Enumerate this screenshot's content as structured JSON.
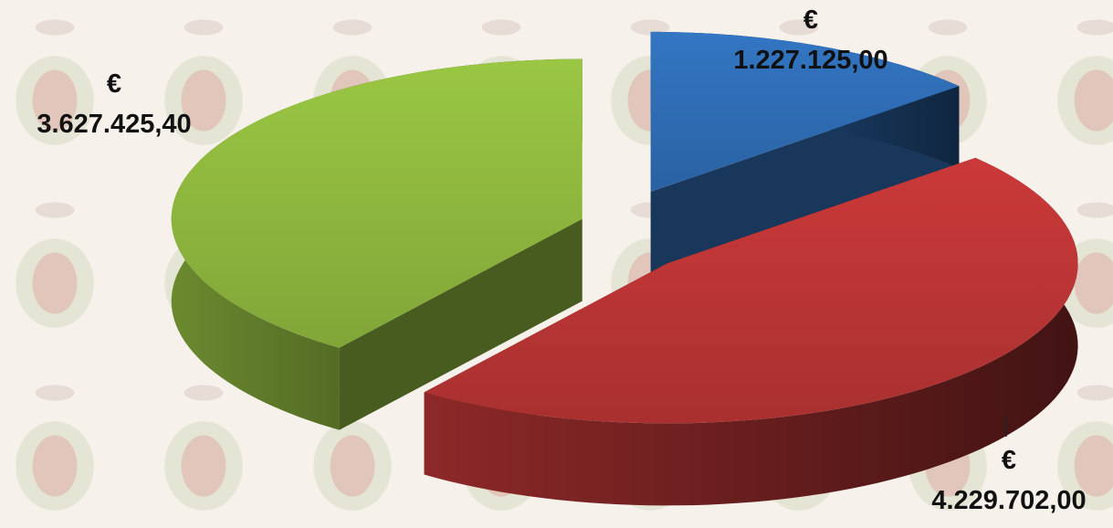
{
  "chart_data": {
    "type": "pie",
    "values": [
      1227125,
      4229702,
      3627425.4
    ],
    "value_labels": [
      "€ 1.227.125,00",
      "€ 4.229.702,00",
      "€ 3.627.425,40"
    ],
    "colors": [
      "#2f6db5",
      "#bc3535",
      "#8fb83e"
    ]
  }
}
